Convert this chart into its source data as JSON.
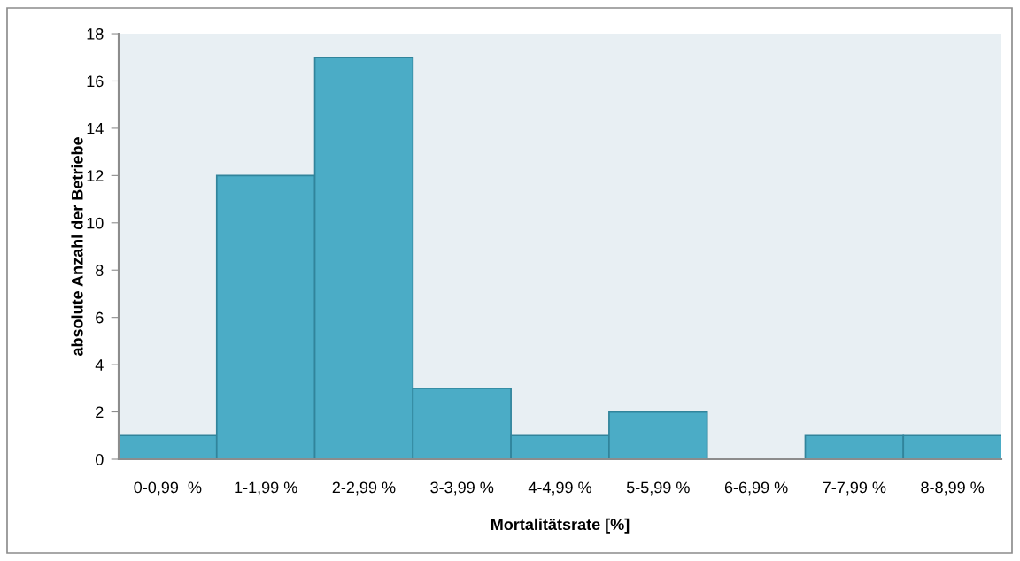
{
  "chart_data": {
    "type": "bar",
    "xlabel": "Mortalitätsrate [%]",
    "ylabel": "absolute Anzahl der Betriebe",
    "categories": [
      "0-0,99  %",
      "1-1,99 %",
      "2-2,99 %",
      "3-3,99 %",
      "4-4,99 %",
      "5-5,99 %",
      "6-6,99 %",
      "7-7,99 %",
      "8-8,99 %"
    ],
    "values": [
      1,
      12,
      17,
      3,
      1,
      2,
      0,
      1,
      1
    ],
    "color": "#4bacc6",
    "ylim": [
      0,
      18
    ],
    "yticks": [
      0,
      2,
      4,
      6,
      8,
      10,
      12,
      14,
      16,
      18
    ],
    "grid": false,
    "legend": false
  }
}
